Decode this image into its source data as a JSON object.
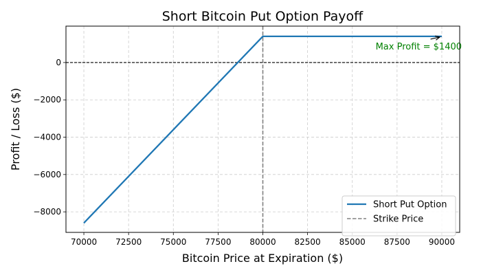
{
  "chart_data": {
    "type": "line",
    "title": "Short Bitcoin Put Option Payoff",
    "xlabel": "Bitcoin Price at Expiration ($)",
    "ylabel": "Profit / Loss ($)",
    "xlim": [
      69000,
      91000
    ],
    "ylim": [
      -9100,
      1950
    ],
    "x_ticks": [
      70000,
      72500,
      75000,
      77500,
      80000,
      82500,
      85000,
      87500,
      90000
    ],
    "x_tick_labels": [
      "70000",
      "72500",
      "75000",
      "77500",
      "80000",
      "82500",
      "85000",
      "87500",
      "90000"
    ],
    "y_ticks": [
      -8000,
      -6000,
      -4000,
      -2000,
      0
    ],
    "y_tick_labels": [
      "−8000",
      "−6000",
      "−4000",
      "−2000",
      "0"
    ],
    "grid": true,
    "legend_position": "bottom-right",
    "series": [
      {
        "name": "Short Put Option",
        "color": "#1f77b4",
        "style": "solid",
        "x": [
          70000,
          80000,
          90000
        ],
        "y": [
          -8600,
          1400,
          1400
        ]
      }
    ],
    "reference_lines": [
      {
        "name": "Strike Price",
        "orientation": "vertical",
        "value": 80000,
        "color": "#808080",
        "style": "dashed"
      },
      {
        "name": "",
        "orientation": "horizontal",
        "value": 0,
        "color": "#000000",
        "style": "dashed"
      }
    ],
    "annotations": [
      {
        "text": "Max Profit = $1400",
        "point_x": 90000,
        "point_y": 1400,
        "text_x": 86300,
        "text_y": 700,
        "color": "#008000"
      }
    ]
  }
}
